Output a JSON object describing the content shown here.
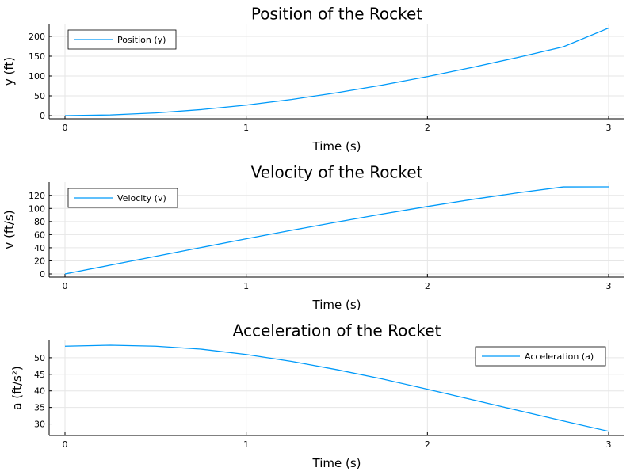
{
  "chart_data": [
    {
      "type": "line",
      "title": "Position of the Rocket",
      "xlabel": "Time (s)",
      "ylabel": "y (ft)",
      "xlim": [
        0,
        3
      ],
      "ylim": [
        0,
        220
      ],
      "xticks": [
        0,
        1,
        2,
        3
      ],
      "yticks": [
        0,
        50,
        100,
        150,
        200
      ],
      "grid": true,
      "legend_position": "top-left",
      "series": [
        {
          "name": "Position (y)",
          "color": "#009af9",
          "x": [
            0,
            0.25,
            0.5,
            0.75,
            1.0,
            1.25,
            1.5,
            1.75,
            2.0,
            2.25,
            2.5,
            2.75,
            3.0
          ],
          "y": [
            0,
            1.7,
            6.7,
            15.1,
            26.5,
            40.8,
            57.7,
            77.0,
            98.5,
            121.9,
            147.1,
            173.8,
            221
          ]
        }
      ]
    },
    {
      "type": "line",
      "title": "Velocity of the Rocket",
      "xlabel": "Time (s)",
      "ylabel": "v (ft/s)",
      "xlim": [
        0,
        3
      ],
      "ylim": [
        0,
        133
      ],
      "xticks": [
        0,
        1,
        2,
        3
      ],
      "yticks": [
        0,
        20,
        40,
        60,
        80,
        100,
        120
      ],
      "grid": true,
      "legend_position": "top-left",
      "series": [
        {
          "name": "Velocity (v)",
          "color": "#009af9",
          "x": [
            0,
            0.25,
            0.5,
            0.75,
            1.0,
            1.25,
            1.5,
            1.75,
            2.0,
            2.25,
            2.5,
            2.75,
            3.0
          ],
          "y": [
            0,
            13.4,
            26.9,
            40.3,
            53.6,
            66.6,
            79.2,
            91.4,
            103.0,
            113.9,
            123.9,
            132.9,
            133
          ]
        }
      ]
    },
    {
      "type": "line",
      "title": "Acceleration of the Rocket",
      "xlabel": "Time (s)",
      "ylabel": "a (ft/s²)",
      "xlim": [
        0,
        3
      ],
      "ylim": [
        27.5,
        53.8
      ],
      "xticks": [
        0,
        1,
        2,
        3
      ],
      "yticks": [
        30,
        35,
        40,
        45,
        50
      ],
      "grid": true,
      "legend_position": "top-right",
      "series": [
        {
          "name": "Acceleration (a)",
          "color": "#009af9",
          "x": [
            0,
            0.25,
            0.5,
            0.75,
            1.0,
            1.25,
            1.5,
            1.75,
            2.0,
            2.25,
            2.5,
            2.75,
            3.0
          ],
          "y": [
            53.5,
            53.8,
            53.5,
            52.6,
            51.0,
            48.9,
            46.4,
            43.6,
            40.5,
            37.3,
            34.1,
            30.9,
            27.8
          ]
        }
      ]
    }
  ]
}
